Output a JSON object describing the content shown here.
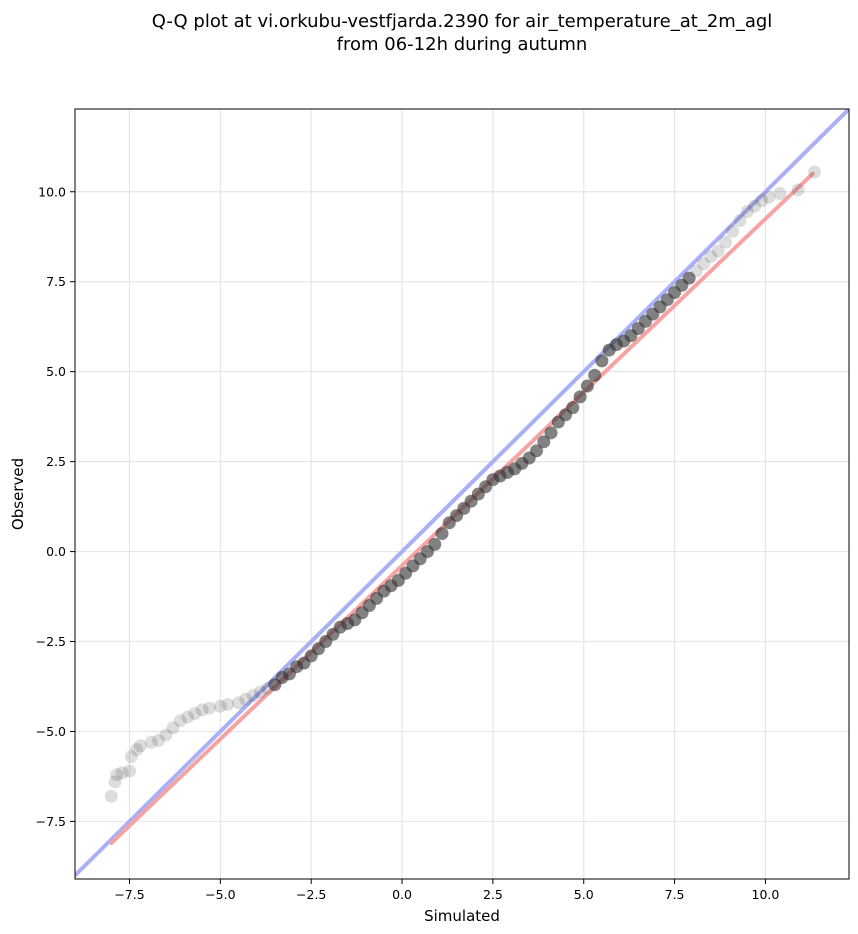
{
  "chart_data": {
    "type": "scatter",
    "title_line1": "Q-Q plot at vi.orkubu-vestfjarda.2390 for air_temperature_at_2m_agl",
    "title_line2": "from 06-12h during autumn",
    "xlabel": "Simulated",
    "ylabel": "Observed",
    "xlim": [
      -9.0,
      12.3
    ],
    "ylim": [
      -9.1,
      12.3
    ],
    "xticks": [
      -7.5,
      -5.0,
      -2.5,
      0.0,
      2.5,
      5.0,
      7.5,
      10.0
    ],
    "yticks": [
      -7.5,
      -5.0,
      -2.5,
      0.0,
      2.5,
      5.0,
      7.5,
      10.0
    ],
    "xtick_labels": [
      "−7.5",
      "−5.0",
      "−2.5",
      "0.0",
      "2.5",
      "5.0",
      "7.5",
      "10.0"
    ],
    "ytick_labels": [
      "−7.5",
      "−5.0",
      "−2.5",
      "0.0",
      "2.5",
      "5.0",
      "7.5",
      "10.0"
    ],
    "grid": true,
    "identity_line": {
      "color": "#aab0f5",
      "from": [
        -9.0,
        -9.0
      ],
      "to": [
        12.3,
        12.3
      ]
    },
    "fit_line": {
      "color": "#f5a3a3",
      "from": [
        -8.0,
        -8.1
      ],
      "to": [
        11.3,
        10.5
      ]
    },
    "point_color": "#333333",
    "points": [
      [
        -8.0,
        -6.8
      ],
      [
        -7.9,
        -6.4
      ],
      [
        -7.85,
        -6.2
      ],
      [
        -7.7,
        -6.15
      ],
      [
        -7.5,
        -6.1
      ],
      [
        -7.45,
        -5.7
      ],
      [
        -7.3,
        -5.5
      ],
      [
        -7.2,
        -5.4
      ],
      [
        -6.9,
        -5.3
      ],
      [
        -6.7,
        -5.25
      ],
      [
        -6.5,
        -5.1
      ],
      [
        -6.3,
        -4.9
      ],
      [
        -6.1,
        -4.7
      ],
      [
        -5.9,
        -4.6
      ],
      [
        -5.7,
        -4.5
      ],
      [
        -5.5,
        -4.4
      ],
      [
        -5.3,
        -4.35
      ],
      [
        -5.0,
        -4.3
      ],
      [
        -4.8,
        -4.25
      ],
      [
        -4.5,
        -4.2
      ],
      [
        -4.3,
        -4.1
      ],
      [
        -4.1,
        -4.0
      ],
      [
        -3.9,
        -3.9
      ],
      [
        -3.7,
        -3.8
      ],
      [
        -3.5,
        -3.7
      ],
      [
        -3.3,
        -3.5
      ],
      [
        -3.1,
        -3.4
      ],
      [
        -2.9,
        -3.2
      ],
      [
        -2.7,
        -3.1
      ],
      [
        -2.5,
        -2.9
      ],
      [
        -2.3,
        -2.7
      ],
      [
        -2.1,
        -2.5
      ],
      [
        -1.9,
        -2.3
      ],
      [
        -1.7,
        -2.1
      ],
      [
        -1.5,
        -2.0
      ],
      [
        -1.3,
        -1.9
      ],
      [
        -1.1,
        -1.7
      ],
      [
        -0.9,
        -1.5
      ],
      [
        -0.7,
        -1.3
      ],
      [
        -0.5,
        -1.1
      ],
      [
        -0.3,
        -0.95
      ],
      [
        -0.1,
        -0.8
      ],
      [
        0.1,
        -0.6
      ],
      [
        0.3,
        -0.4
      ],
      [
        0.5,
        -0.2
      ],
      [
        0.7,
        0.0
      ],
      [
        0.9,
        0.2
      ],
      [
        1.1,
        0.5
      ],
      [
        1.3,
        0.8
      ],
      [
        1.5,
        1.0
      ],
      [
        1.7,
        1.2
      ],
      [
        1.9,
        1.4
      ],
      [
        2.1,
        1.6
      ],
      [
        2.3,
        1.8
      ],
      [
        2.5,
        2.0
      ],
      [
        2.7,
        2.1
      ],
      [
        2.9,
        2.2
      ],
      [
        3.1,
        2.3
      ],
      [
        3.3,
        2.45
      ],
      [
        3.5,
        2.6
      ],
      [
        3.7,
        2.8
      ],
      [
        3.9,
        3.05
      ],
      [
        4.1,
        3.3
      ],
      [
        4.3,
        3.6
      ],
      [
        4.5,
        3.8
      ],
      [
        4.7,
        4.0
      ],
      [
        4.9,
        4.3
      ],
      [
        5.1,
        4.6
      ],
      [
        5.3,
        4.9
      ],
      [
        5.5,
        5.3
      ],
      [
        5.7,
        5.6
      ],
      [
        5.9,
        5.75
      ],
      [
        6.1,
        5.85
      ],
      [
        6.3,
        6.0
      ],
      [
        6.5,
        6.2
      ],
      [
        6.7,
        6.4
      ],
      [
        6.9,
        6.6
      ],
      [
        7.1,
        6.8
      ],
      [
        7.3,
        7.0
      ],
      [
        7.5,
        7.2
      ],
      [
        7.7,
        7.4
      ],
      [
        7.9,
        7.6
      ],
      [
        8.1,
        7.8
      ],
      [
        8.3,
        8.0
      ],
      [
        8.5,
        8.2
      ],
      [
        8.7,
        8.35
      ],
      [
        8.9,
        8.6
      ],
      [
        9.1,
        8.9
      ],
      [
        9.3,
        9.2
      ],
      [
        9.5,
        9.45
      ],
      [
        9.7,
        9.6
      ],
      [
        9.9,
        9.75
      ],
      [
        10.1,
        9.85
      ],
      [
        10.4,
        9.95
      ],
      [
        10.9,
        10.05
      ],
      [
        11.35,
        10.55
      ]
    ]
  }
}
